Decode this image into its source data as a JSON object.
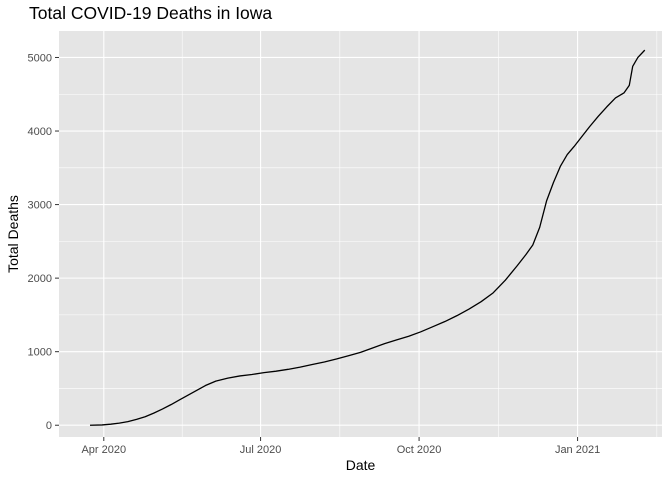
{
  "chart_data": {
    "type": "line",
    "title": "Total COVID-19 Deaths in Iowa",
    "xlabel": "Date",
    "ylabel": "Total Deaths",
    "x_ticks": [
      {
        "date": "2020-04-01",
        "label": "Apr 2020"
      },
      {
        "date": "2020-07-01",
        "label": "Jul 2020"
      },
      {
        "date": "2020-10-01",
        "label": "Oct 2020"
      },
      {
        "date": "2021-01-01",
        "label": "Jan 2021"
      }
    ],
    "y_ticks": [
      0,
      1000,
      2000,
      3000,
      4000,
      5000
    ],
    "xlim": [
      "2020-03-06",
      "2021-02-19"
    ],
    "ylim": [
      -160,
      5360
    ],
    "grid": true,
    "legend": "none",
    "colors": {
      "panel": "#e5e5e5",
      "grid": "#ffffff",
      "line": "#000000"
    },
    "series": [
      {
        "points": [
          [
            "2020-03-24",
            0
          ],
          [
            "2020-03-31",
            4
          ],
          [
            "2020-04-05",
            14
          ],
          [
            "2020-04-10",
            29
          ],
          [
            "2020-04-15",
            49
          ],
          [
            "2020-04-20",
            80
          ],
          [
            "2020-04-25",
            115
          ],
          [
            "2020-04-30",
            165
          ],
          [
            "2020-05-05",
            220
          ],
          [
            "2020-05-10",
            280
          ],
          [
            "2020-05-15",
            345
          ],
          [
            "2020-05-20",
            410
          ],
          [
            "2020-05-25",
            475
          ],
          [
            "2020-05-30",
            540
          ],
          [
            "2020-06-05",
            600
          ],
          [
            "2020-06-12",
            640
          ],
          [
            "2020-06-19",
            670
          ],
          [
            "2020-06-26",
            690
          ],
          [
            "2020-07-03",
            715
          ],
          [
            "2020-07-10",
            735
          ],
          [
            "2020-07-17",
            760
          ],
          [
            "2020-07-24",
            790
          ],
          [
            "2020-07-31",
            825
          ],
          [
            "2020-08-07",
            860
          ],
          [
            "2020-08-14",
            900
          ],
          [
            "2020-08-21",
            945
          ],
          [
            "2020-08-28",
            990
          ],
          [
            "2020-09-04",
            1050
          ],
          [
            "2020-09-11",
            1110
          ],
          [
            "2020-09-18",
            1160
          ],
          [
            "2020-09-25",
            1210
          ],
          [
            "2020-10-02",
            1270
          ],
          [
            "2020-10-09",
            1340
          ],
          [
            "2020-10-16",
            1410
          ],
          [
            "2020-10-23",
            1490
          ],
          [
            "2020-10-30",
            1580
          ],
          [
            "2020-11-06",
            1680
          ],
          [
            "2020-11-13",
            1800
          ],
          [
            "2020-11-20",
            1970
          ],
          [
            "2020-11-27",
            2170
          ],
          [
            "2020-12-02",
            2320
          ],
          [
            "2020-12-06",
            2450
          ],
          [
            "2020-12-10",
            2690
          ],
          [
            "2020-12-14",
            3050
          ],
          [
            "2020-12-18",
            3300
          ],
          [
            "2020-12-22",
            3520
          ],
          [
            "2020-12-26",
            3680
          ],
          [
            "2020-12-30",
            3790
          ],
          [
            "2021-01-03",
            3910
          ],
          [
            "2021-01-08",
            4060
          ],
          [
            "2021-01-13",
            4200
          ],
          [
            "2021-01-18",
            4330
          ],
          [
            "2021-01-23",
            4450
          ],
          [
            "2021-01-28",
            4520
          ],
          [
            "2021-01-31",
            4620
          ],
          [
            "2021-02-02",
            4880
          ],
          [
            "2021-02-05",
            5000
          ],
          [
            "2021-02-09",
            5100
          ]
        ]
      }
    ]
  }
}
